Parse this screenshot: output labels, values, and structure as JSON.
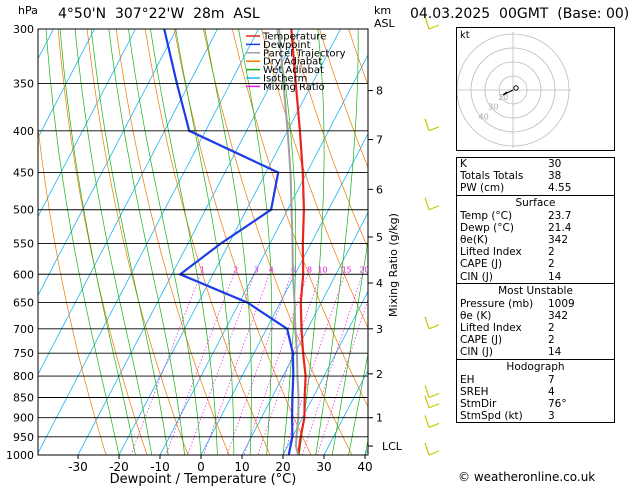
{
  "header": {
    "units_left": "hPa",
    "location": "4°50'N  307°22'W  28m  ASL",
    "units_right": "km",
    "units_right2": "ASL",
    "datetime": "04.03.2025  00GMT  (Base: 00)"
  },
  "legend": [
    {
      "label": "Temperature",
      "color": "#e8241c"
    },
    {
      "label": "Dewpoint",
      "color": "#1c3ce8"
    },
    {
      "label": "Parcel Trajectory",
      "color": "#a0a0a0"
    },
    {
      "label": "Dry Adiabat",
      "color": "#f07800"
    },
    {
      "label": "Wet Adiabat",
      "color": "#14b414"
    },
    {
      "label": "Isotherm",
      "color": "#1cb4f0"
    },
    {
      "label": "Mixing Ratio",
      "color": "#e81ce8"
    }
  ],
  "chart_data": {
    "type": "line",
    "xlabel": "Dewpoint / Temperature (°C)",
    "ylabel": "Mixing Ratio (g/kg)",
    "x_ticks": [
      -30,
      -20,
      -10,
      0,
      10,
      20,
      30,
      40
    ],
    "pressure_levels": [
      300,
      350,
      400,
      450,
      500,
      550,
      600,
      650,
      700,
      750,
      800,
      850,
      900,
      950,
      1000
    ],
    "km_ticks": [
      {
        "label": "8",
        "p": 357
      },
      {
        "label": "7",
        "p": 410
      },
      {
        "label": "6",
        "p": 472
      },
      {
        "label": "5",
        "p": 540
      },
      {
        "label": "4",
        "p": 615
      },
      {
        "label": "3",
        "p": 700
      },
      {
        "label": "2",
        "p": 795
      },
      {
        "label": "1",
        "p": 900
      },
      {
        "label": "LCL",
        "p": 975
      }
    ],
    "mixing_ratio_labels": [
      "1",
      "2",
      "3",
      "4",
      "6",
      "8",
      "10",
      "15",
      "20",
      "25"
    ],
    "series": [
      {
        "name": "Temperature",
        "color": "#e8241c",
        "p": [
          1000,
          950,
          900,
          850,
          800,
          750,
          700,
          650,
          600,
          550,
          500,
          450,
          400,
          350,
          300
        ],
        "t": [
          23.7,
          22.0,
          20.5,
          18.0,
          15.5,
          12.0,
          8.5,
          5.0,
          2.0,
          -2.0,
          -6.0,
          -11.0,
          -17.0,
          -24.0,
          -32.0
        ]
      },
      {
        "name": "Dewpoint",
        "color": "#1c3ce8",
        "p": [
          1000,
          950,
          900,
          850,
          800,
          750,
          700,
          650,
          600,
          550,
          500,
          450,
          400,
          350,
          300
        ],
        "t": [
          21.4,
          20.0,
          17.5,
          15.0,
          12.5,
          9.5,
          5.0,
          -8.0,
          -28.0,
          -22.0,
          -14.0,
          -17.0,
          -44.0,
          -53.0,
          -63.0
        ]
      },
      {
        "name": "Parcel Trajectory",
        "color": "#a0a0a0",
        "p": [
          1000,
          975,
          950,
          900,
          850,
          800,
          750,
          700,
          650,
          600,
          550,
          500,
          450,
          400,
          350,
          300
        ],
        "t": [
          23.7,
          22.0,
          21.0,
          19.0,
          16.5,
          13.5,
          10.5,
          7.0,
          3.5,
          -0.5,
          -4.5,
          -9.0,
          -14.0,
          -20.0,
          -27.0,
          -35.0
        ]
      }
    ],
    "wind_barbs_p": [
      1000,
      925,
      875,
      850,
      700,
      500,
      400,
      300
    ]
  },
  "indices": [
    {
      "label": "K",
      "value": "30"
    },
    {
      "label": "Totals Totals",
      "value": "38"
    },
    {
      "label": "PW (cm)",
      "value": "4.55"
    }
  ],
  "surface": {
    "title": "Surface",
    "rows": [
      {
        "label": "Temp (°C)",
        "value": "23.7"
      },
      {
        "label": "Dewp (°C)",
        "value": "21.4"
      },
      {
        "label": "θe(K)",
        "value": "342"
      },
      {
        "label": "Lifted Index",
        "value": "2"
      },
      {
        "label": "CAPE (J)",
        "value": "2"
      },
      {
        "label": "CIN (J)",
        "value": "14"
      }
    ]
  },
  "most_unstable": {
    "title": "Most Unstable",
    "rows": [
      {
        "label": "Pressure (mb)",
        "value": "1009"
      },
      {
        "label": "θe (K)",
        "value": "342"
      },
      {
        "label": "Lifted Index",
        "value": "2"
      },
      {
        "label": "CAPE (J)",
        "value": "2"
      },
      {
        "label": "CIN (J)",
        "value": "14"
      }
    ]
  },
  "hodograph": {
    "title": "Hodograph",
    "rows": [
      {
        "label": "EH",
        "value": "7"
      },
      {
        "label": "SREH",
        "value": "4"
      },
      {
        "label": "StmDir",
        "value": "76°"
      },
      {
        "label": "StmSpd (kt)",
        "value": "3"
      }
    ],
    "units": "kt",
    "ring_labels": [
      "40",
      "30",
      "20"
    ]
  },
  "credit": "© weatheronline.co.uk"
}
